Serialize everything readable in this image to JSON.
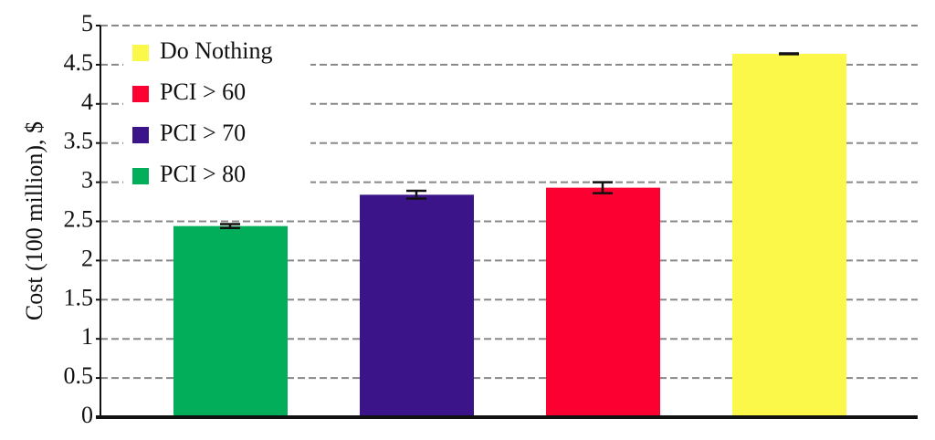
{
  "chart_data": {
    "type": "bar",
    "ylabel": "Cost (100 million), $",
    "categories": [
      null,
      null,
      null,
      null
    ],
    "series": [
      {
        "name": "Do Nothing",
        "color": "#fbf84a",
        "values": [
          null,
          null,
          null,
          4.64
        ],
        "errors": [
          null,
          null,
          null,
          0.005
        ]
      },
      {
        "name": "PCI > 60",
        "color": "#fb0030",
        "values": [
          null,
          null,
          2.93,
          null
        ],
        "errors": [
          null,
          null,
          0.07,
          null
        ]
      },
      {
        "name": "PCI > 70",
        "color": "#3b148a",
        "values": [
          null,
          2.84,
          null,
          null
        ],
        "errors": [
          null,
          0.05,
          null,
          null
        ]
      },
      {
        "name": "PCI > 80",
        "color": "#03ae5a",
        "values": [
          2.44,
          null,
          null,
          null
        ],
        "errors": [
          0.025,
          null,
          null,
          null
        ]
      }
    ],
    "ylim": [
      0,
      5
    ],
    "yticks": [
      0,
      0.5,
      1,
      1.5,
      2,
      2.5,
      3,
      3.5,
      4,
      4.5,
      5
    ],
    "grid": true
  }
}
